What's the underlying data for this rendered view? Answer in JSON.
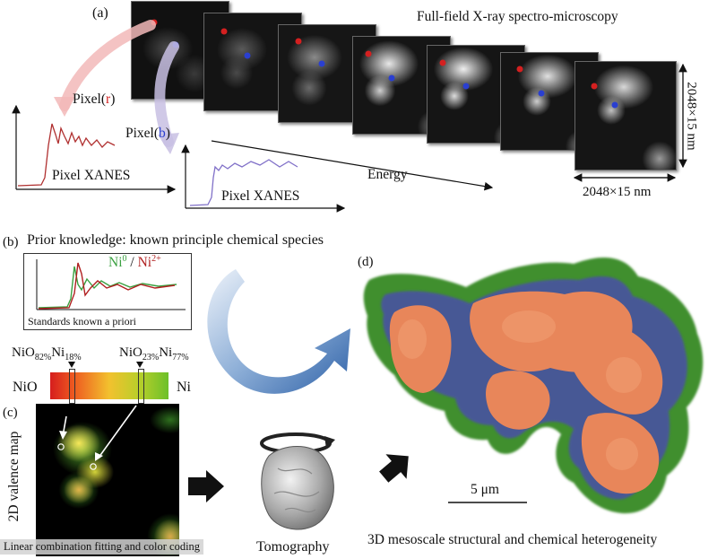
{
  "panel_a": {
    "label": "(a)",
    "title": "Full-field X-ray spectro-microscopy",
    "pixel_r_prefix": "Pixel(",
    "pixel_r_letter": "r",
    "pixel_r_suffix": ")",
    "pixel_b_prefix": "Pixel(",
    "pixel_b_letter": "b",
    "pixel_b_suffix": ")",
    "xanes_label_1": "Pixel XANES",
    "xanes_label_2": "Pixel XANES",
    "energy_label": "Energy",
    "dim_vertical": "2048×15 nm",
    "dim_horizontal": "2048×15 nm",
    "marker_colors": {
      "red": "#d42020",
      "blue": "#2a3fd0"
    }
  },
  "panel_b": {
    "label": "(b)",
    "title": "Prior knowledge: known principle chemical species",
    "ni0_base": "Ni",
    "ni0_sup": "0",
    "slash": " / ",
    "ni2_base": "Ni",
    "ni2_sup": "2+",
    "standards_caption": "Standards known a priori",
    "comp1_a": "NiO",
    "comp1_a_sub": "82%",
    "comp1_b": "Ni",
    "comp1_b_sub": "18%",
    "comp2_a": "NiO",
    "comp2_a_sub": "23%",
    "comp2_b": "Ni",
    "comp2_b_sub": "77%",
    "bar_left": "NiO",
    "bar_right": "Ni",
    "colors": {
      "ni0": "#3aa040",
      "ni2": "#b02020",
      "bar_start": "#d61e1e",
      "bar_mid": "#f2c12e",
      "bar_end": "#6cc02a"
    }
  },
  "panel_c": {
    "label": "(c)",
    "side_label": "2D valence map",
    "caption": "Linear combination fitting and color coding",
    "tomography": "Tomography"
  },
  "panel_d": {
    "label": "(d)",
    "scale": "5 μm",
    "caption": "3D mesoscale structural and chemical heterogeneity",
    "colors": {
      "orange": "#e8865a",
      "green": "#3f8f2e",
      "blue": "#4a4fa8"
    }
  }
}
